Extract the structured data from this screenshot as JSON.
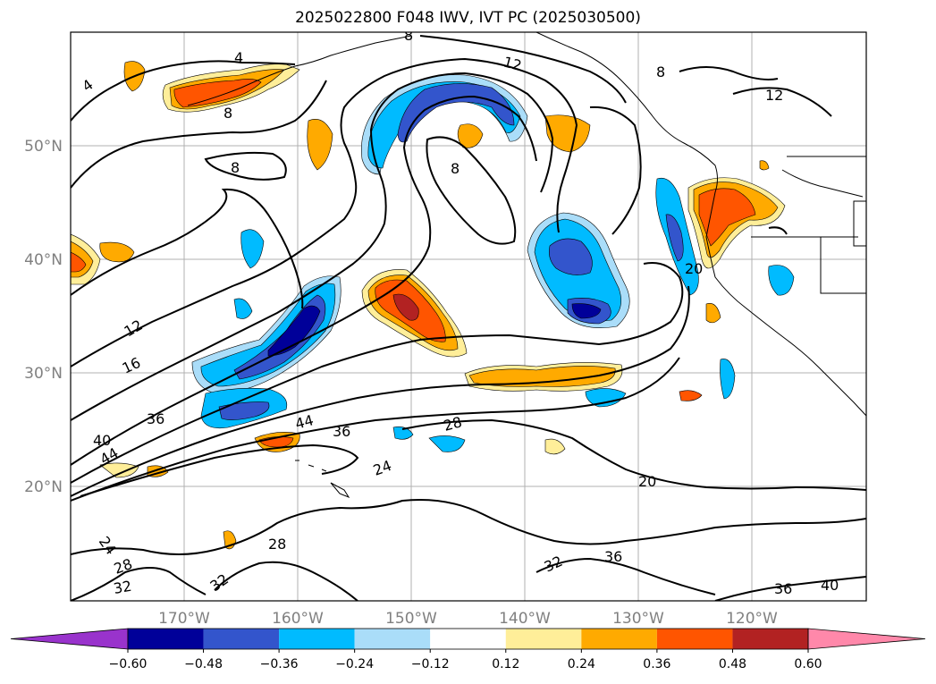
{
  "title": "2025022800 F048 IWV, IVT PC (2025030500)",
  "map": {
    "lat_labels": [
      "50°N",
      "40°N",
      "30°N",
      "20°N"
    ],
    "lon_labels": [
      "170°W",
      "160°W",
      "150°W",
      "140°W",
      "130°W",
      "120°W"
    ],
    "contour_labels": [
      "4",
      "8",
      "8",
      "8",
      "8",
      "4",
      "12",
      "12",
      "12",
      "16",
      "20",
      "20",
      "24",
      "24",
      "28",
      "28",
      "28",
      "32",
      "32",
      "32",
      "36",
      "36",
      "36",
      "36",
      "40",
      "40",
      "44",
      "44",
      "8"
    ],
    "colors": {
      "neg_060": "#9933cc",
      "neg_048": "#000099",
      "neg_036": "#3355cc",
      "neg_024": "#00bbff",
      "neg_012": "#aaddf9",
      "pos_012": "#ffee99",
      "pos_024": "#ffaa00",
      "pos_036": "#ff5500",
      "pos_048": "#b22222",
      "pos_060": "#ff88aa"
    }
  },
  "colorbar": {
    "ticks": [
      "−0.60",
      "−0.48",
      "−0.36",
      "−0.24",
      "−0.12",
      "0.12",
      "0.24",
      "0.36",
      "0.48",
      "0.60"
    ],
    "colors": [
      "#9933cc",
      "#000099",
      "#3355cc",
      "#00bbff",
      "#aaddf9",
      "#ffffff",
      "#ffee99",
      "#ffaa00",
      "#ff5500",
      "#b22222",
      "#ff88aa"
    ]
  }
}
